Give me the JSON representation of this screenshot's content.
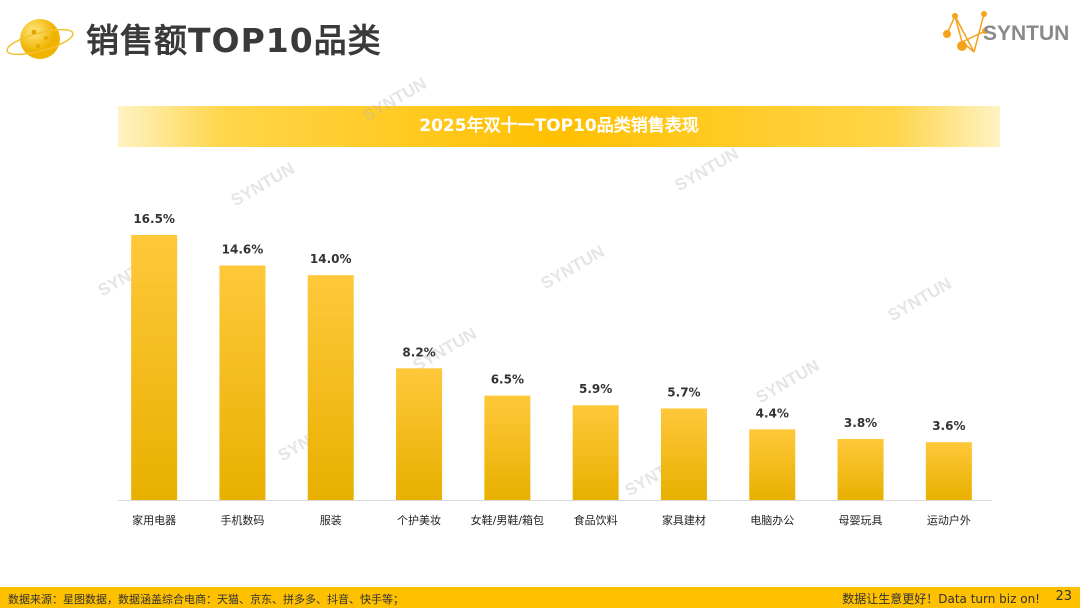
{
  "header": {
    "title": "销售额TOP10品类",
    "logo_text": "SYNTUN"
  },
  "watermark": "SYNTUN",
  "chart_data": {
    "type": "bar",
    "title": "2025年双十一TOP10品类销售表现",
    "categories": [
      "家用电器",
      "手机数码",
      "服装",
      "个护美妆",
      "女鞋/男鞋/箱包",
      "食品饮料",
      "家具建材",
      "电脑办公",
      "母婴玩具",
      "运动户外"
    ],
    "values": [
      16.5,
      14.6,
      14.0,
      8.2,
      6.5,
      5.9,
      5.7,
      4.4,
      3.8,
      3.6
    ],
    "data_labels": [
      "16.5%",
      "14.6%",
      "14.0%",
      "8.2%",
      "6.5%",
      "5.9%",
      "5.7%",
      "4.4%",
      "3.8%",
      "3.6%"
    ],
    "unit": "%",
    "ylim": [
      0,
      16.5
    ],
    "grid": false,
    "colors": {
      "bar_top": "#ffc83a",
      "bar_bottom": "#e8b000"
    }
  },
  "footer": {
    "source": "数据来源：星图数据，数据涵盖综合电商：天猫、京东、拼多多、抖音、快手等；",
    "slogan": "数据让生意更好！Data turn biz on!",
    "page": "23"
  }
}
